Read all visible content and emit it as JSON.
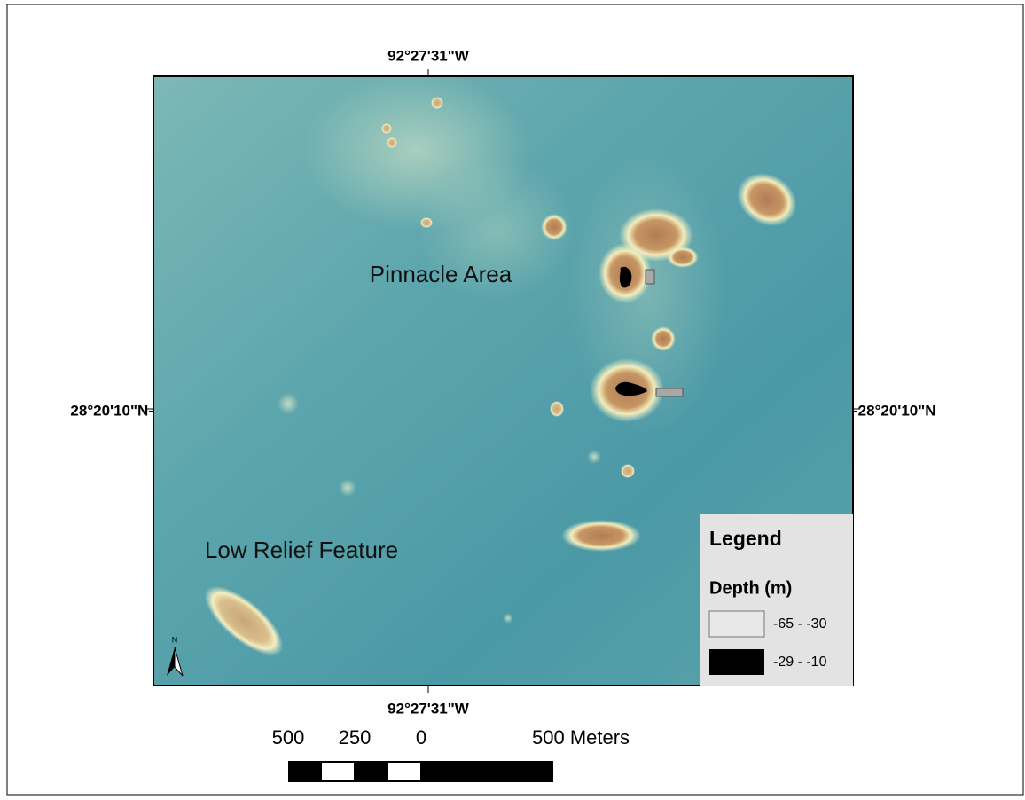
{
  "map": {
    "coordinates": {
      "top": "92°27'31\"W",
      "bottom": "92°27'31\"W",
      "left": "28°20'10\"N-",
      "right": "-28°20'10\"N"
    },
    "area_labels": [
      "Pinnacle Area",
      "Low Relief Feature"
    ],
    "north": "N",
    "legend": {
      "title": "Legend",
      "subtitle": "Depth (m)",
      "entries": [
        "-65 - -30",
        "-29 - -10"
      ]
    },
    "scale_bar": {
      "labels": [
        "500",
        "250",
        "0",
        "500 Meters"
      ]
    }
  }
}
